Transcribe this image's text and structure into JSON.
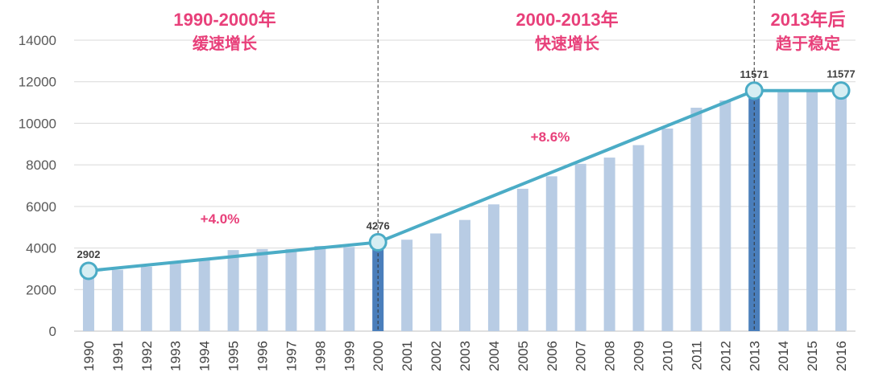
{
  "chart_data": {
    "type": "bar",
    "categories": [
      "1990",
      "1991",
      "1992",
      "1993",
      "1994",
      "1995",
      "1996",
      "1997",
      "1998",
      "1999",
      "2000",
      "2001",
      "2002",
      "2003",
      "2004",
      "2005",
      "2006",
      "2007",
      "2008",
      "2009",
      "2010",
      "2011",
      "2012",
      "2013",
      "2014",
      "2015",
      "2016"
    ],
    "values": [
      2902,
      2950,
      3100,
      3350,
      3500,
      3900,
      3950,
      3950,
      4100,
      4050,
      4276,
      4400,
      4700,
      5350,
      6100,
      6850,
      7450,
      8050,
      8350,
      8950,
      9750,
      10750,
      11100,
      11571,
      11500,
      11550,
      11577
    ],
    "highlight_categories": [
      "2000",
      "2013"
    ],
    "trend_line": {
      "x": [
        "1990",
        "2000",
        "2013",
        "2016"
      ],
      "y": [
        2902,
        4276,
        11571,
        11577
      ]
    },
    "point_labels": [
      {
        "x": "1990",
        "text": "2902"
      },
      {
        "x": "2000",
        "text": "4276"
      },
      {
        "x": "2013",
        "text": "11571"
      },
      {
        "x": "2016",
        "text": "11577"
      }
    ],
    "periods": [
      {
        "title": "1990-2000年",
        "subtitle": "缓速增长",
        "growth": "+4.0%"
      },
      {
        "title": "2000-2013年",
        "subtitle": "快速增长",
        "growth": "+8.6%"
      },
      {
        "title": "2013年后",
        "subtitle": "趋于稳定",
        "growth": ""
      }
    ],
    "dividers_at": [
      "2000",
      "2013"
    ],
    "ylim": [
      0,
      14000
    ],
    "yticks": [
      0,
      2000,
      4000,
      6000,
      8000,
      10000,
      12000,
      14000
    ],
    "grid": true,
    "title": "",
    "xlabel": "",
    "ylabel": "",
    "colors": {
      "bar": "#b8cce4",
      "bar_highlight": "#4a7ebb",
      "line": "#4bacc6",
      "marker_fill": "#d6eef3",
      "annotation": "#e8407a",
      "grid": "#d9d9d9"
    }
  }
}
